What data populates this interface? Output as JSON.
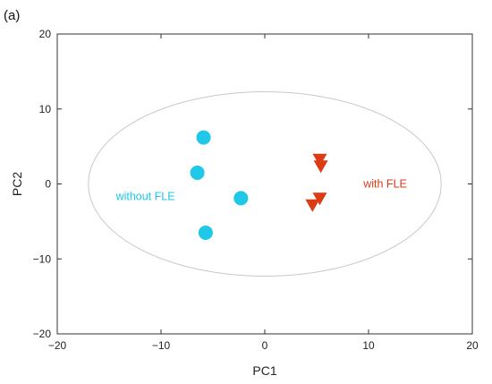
{
  "chart_data": {
    "type": "scatter",
    "panel_label": "(a)",
    "title": "",
    "xlabel": "PC1",
    "ylabel": "PC2",
    "xlim": [
      -20,
      20
    ],
    "ylim": [
      -20,
      20
    ],
    "xticks": [
      -20,
      -10,
      0,
      10,
      20
    ],
    "yticks": [
      -20,
      -10,
      0,
      10,
      20
    ],
    "grid": false,
    "ellipse": {
      "cx": 0,
      "cy": 0,
      "rx": 17,
      "ry": 12.3,
      "color": "#c8c8c8"
    },
    "series": [
      {
        "name": "without FLE",
        "marker": "circle",
        "color": "#1ec8e6",
        "label_anchor": [
          -11.5,
          -1.7
        ],
        "points": [
          {
            "x": -5.9,
            "y": 6.2
          },
          {
            "x": -6.5,
            "y": 1.5
          },
          {
            "x": -2.3,
            "y": -1.9
          },
          {
            "x": -5.7,
            "y": -6.5
          }
        ]
      },
      {
        "name": "with FLE",
        "marker": "triangle-down",
        "color": "#dc3c14",
        "label_anchor": [
          11.6,
          0.0
        ],
        "points": [
          {
            "x": 5.3,
            "y": 3.2
          },
          {
            "x": 5.4,
            "y": 2.3
          },
          {
            "x": 5.3,
            "y": -2.0
          },
          {
            "x": 4.6,
            "y": -2.9
          }
        ]
      }
    ]
  }
}
